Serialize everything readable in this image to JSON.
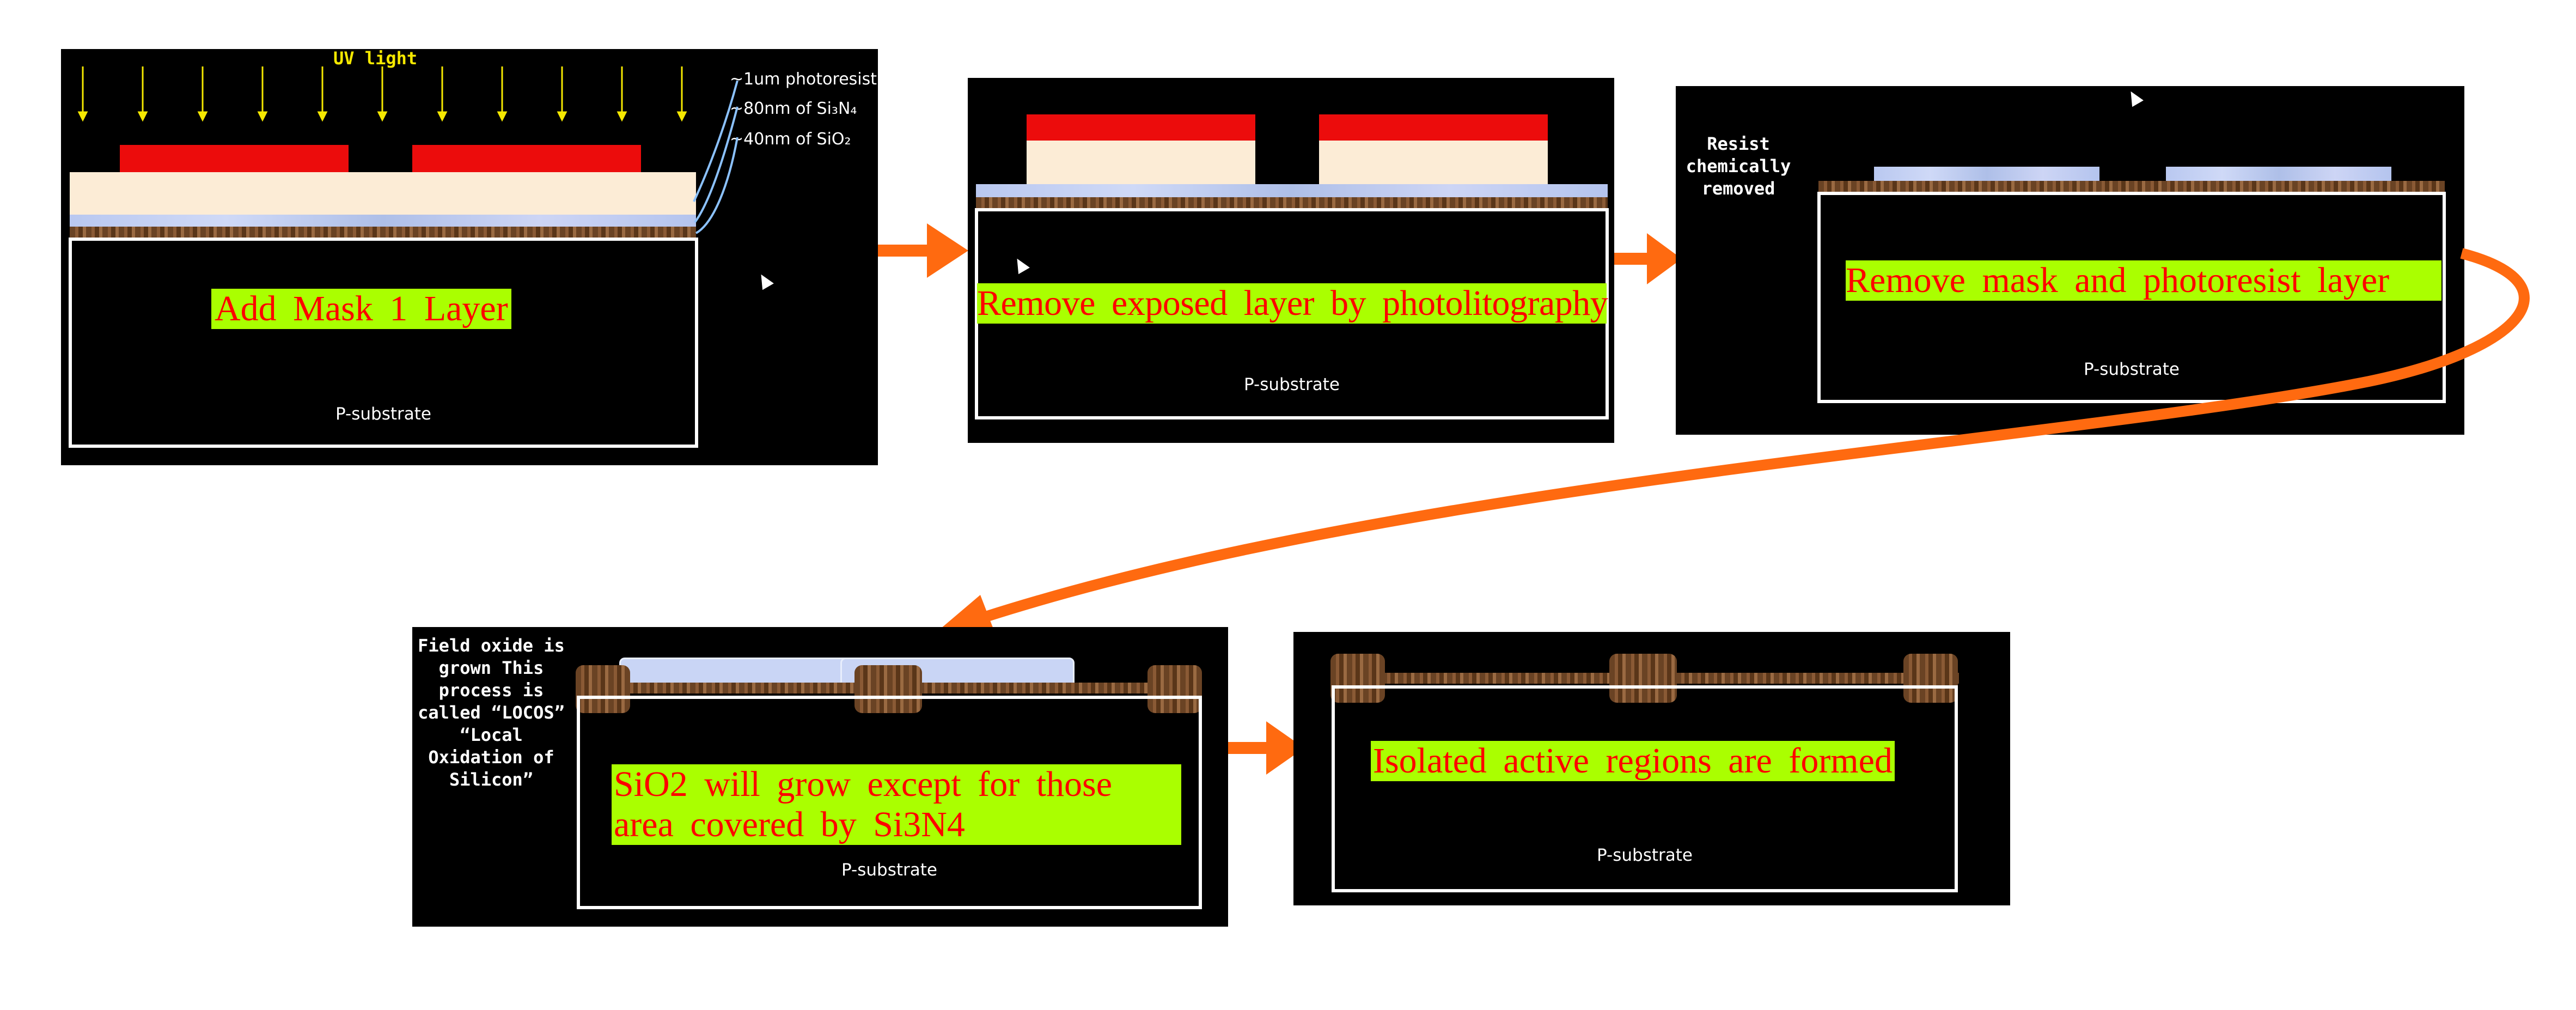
{
  "panel1": {
    "uv_label": "UV light",
    "labels": [
      "~1um photoresist",
      "~80nm of Si₃N₄",
      "~40nm of SiO₂"
    ],
    "caption": "Add Mask 1 Layer",
    "substrate": "P-substrate"
  },
  "panel2": {
    "caption": "Remove exposed layer by photolitography",
    "substrate": "P-substrate"
  },
  "panel3": {
    "note": "Resist chemically removed",
    "caption": "Remove mask and photoresist layer",
    "substrate": "P-substrate"
  },
  "panel4": {
    "note": "Field oxide is grown This process is called “LOCOS” “Local Oxidation of Silicon”",
    "caption": "SiO2 will grow except for those area covered by Si3N4",
    "substrate": "P-substrate"
  },
  "panel5": {
    "caption": "Isolated active regions are formed",
    "substrate": "P-substrate"
  },
  "colors": {
    "arrow": "#ff6a10",
    "mask": "#ec0c0c",
    "caption_bg": "#aaff00",
    "caption_text": "#ff0000",
    "uv": "#f5e800"
  }
}
